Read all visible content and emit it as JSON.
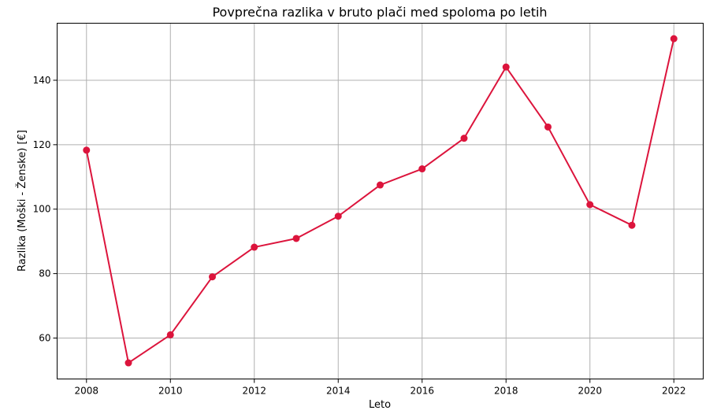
{
  "chart_data": {
    "type": "line",
    "title": "Povprečna razlika v bruto plači med spoloma po letih",
    "xlabel": "Leto",
    "ylabel": "Razlika (Moški - Ženske) [€]",
    "x": [
      2008,
      2009,
      2010,
      2011,
      2012,
      2013,
      2014,
      2015,
      2016,
      2017,
      2018,
      2019,
      2020,
      2021,
      2022
    ],
    "values": [
      118.3,
      52.3,
      61.0,
      79.0,
      88.2,
      90.9,
      97.8,
      107.5,
      112.5,
      122.0,
      144.1,
      125.5,
      101.4,
      95.0,
      152.9
    ],
    "xlim": [
      2007.3,
      2022.7
    ],
    "ylim": [
      47.3,
      157.7
    ],
    "xticks": [
      2008,
      2010,
      2012,
      2014,
      2016,
      2018,
      2020,
      2022
    ],
    "yticks": [
      60,
      80,
      100,
      120,
      140
    ],
    "grid": true,
    "legend": "none",
    "color": "#dc143c"
  }
}
